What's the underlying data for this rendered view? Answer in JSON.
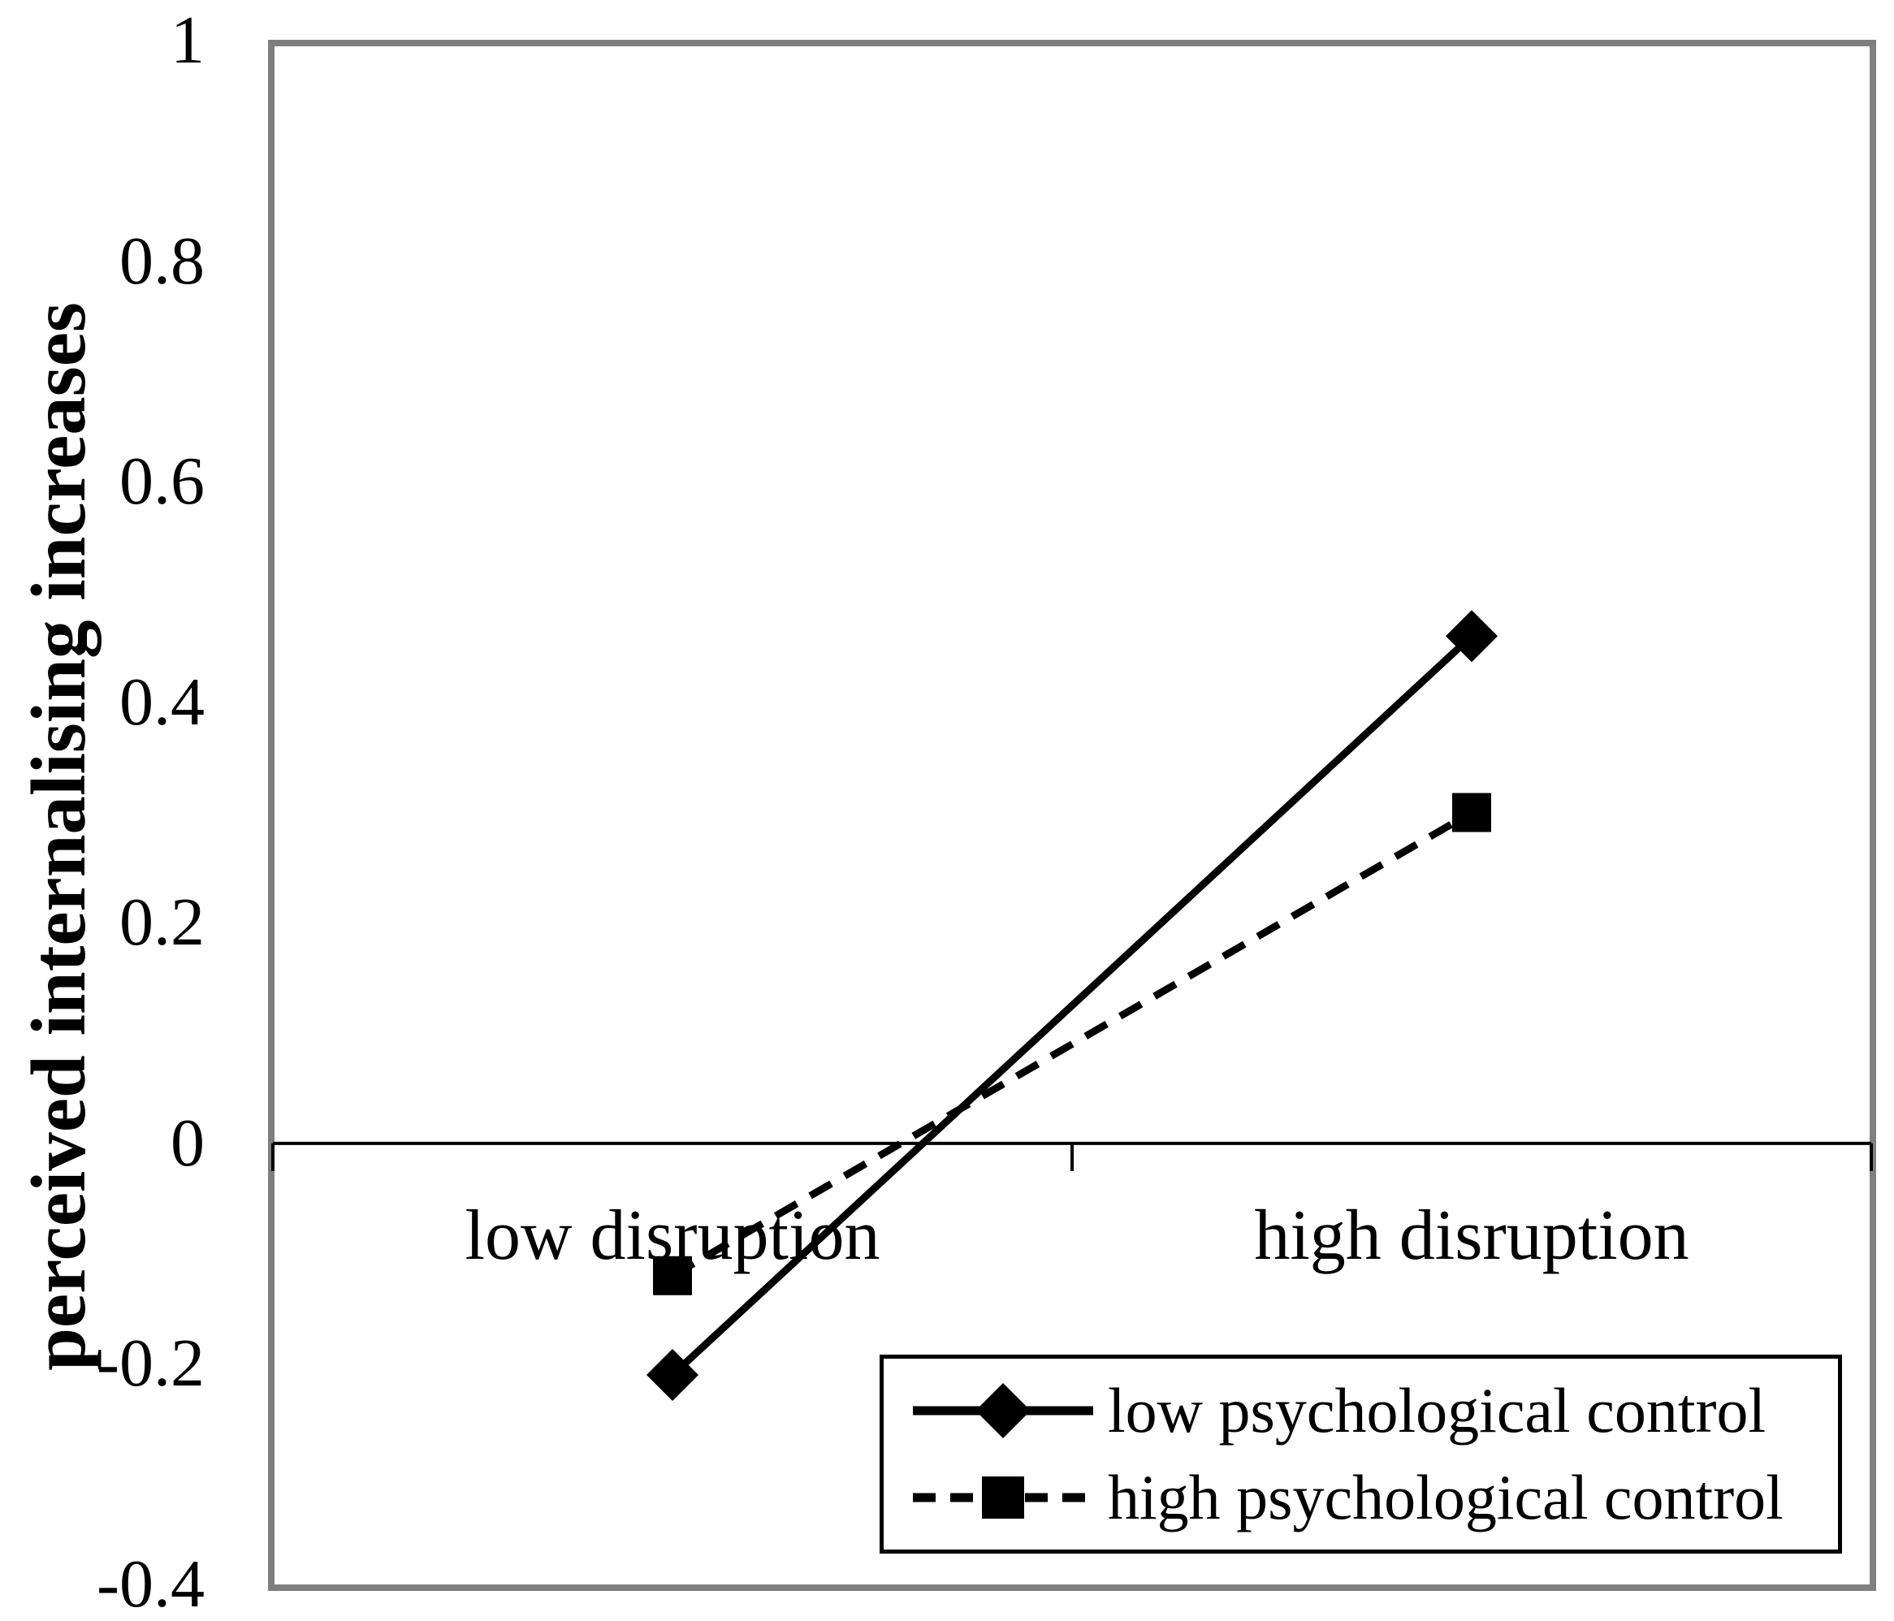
{
  "figure": {
    "background": "#ffffff",
    "plot_border_color": "#7f7f7f",
    "ink_color": "#000000"
  },
  "y_axis": {
    "title": "perceived internalising increases",
    "tick_labels": [
      "1",
      "0.8",
      "0.6",
      "0.4",
      "0.2",
      "0",
      "-0.2",
      "-0.4"
    ],
    "tick_values": [
      1,
      0.8,
      0.6,
      0.4,
      0.2,
      0,
      -0.2,
      -0.4
    ]
  },
  "x_axis": {
    "categories": [
      "low disruption",
      "high disruption"
    ]
  },
  "legend": {
    "items": [
      {
        "label": "low psychological control",
        "line": "solid",
        "marker": "diamond"
      },
      {
        "label": "high psychological control",
        "line": "dashed",
        "marker": "square"
      }
    ]
  },
  "chart_data": {
    "type": "line",
    "categories": [
      "low disruption",
      "high disruption"
    ],
    "series": [
      {
        "name": "low psychological control",
        "values": [
          -0.21,
          0.46
        ],
        "line": "solid",
        "marker": "diamond",
        "color": "#000000"
      },
      {
        "name": "high psychological control",
        "values": [
          -0.12,
          0.3
        ],
        "line": "dashed",
        "marker": "square",
        "color": "#000000"
      }
    ],
    "title": "",
    "xlabel": "",
    "ylabel": "perceived internalising increases",
    "ylim": [
      -0.4,
      1
    ],
    "ytick_step": 0.2,
    "grid": false,
    "zero_line": true,
    "legend_position": "inside-bottom-right"
  }
}
